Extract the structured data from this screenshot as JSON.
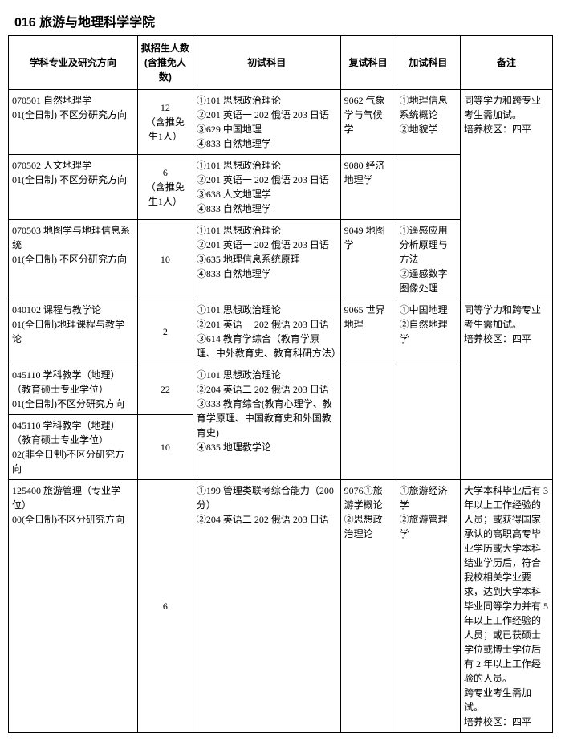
{
  "title": "016 旅游与地理科学学院",
  "headers": {
    "major": "学科专业及研究方向",
    "num": "拟招生人数(含推免人数)",
    "exam": "初试科目",
    "reexam": "复试科目",
    "addexam": "加试科目",
    "note": "备注"
  },
  "rows": {
    "r0": {
      "major": "070501 自然地理学\n01(全日制) 不区分研究方向",
      "num": "12\n（含推免生1人）",
      "exam": "①101 思想政治理论\n②201 英语一 202 俄语 203 日语\n③629 中国地理\n④833 自然地理学",
      "reexam": "9062 气象学与气候学",
      "addexam": "①地理信息系统概论\n②地貌学",
      "note": "同等学力和跨专业考生需加试。\n培养校区：四平"
    },
    "r1": {
      "major": "070502 人文地理学\n01(全日制) 不区分研究方向",
      "num": "6\n（含推免生1人）",
      "exam": "①101 思想政治理论\n②201 英语一 202 俄语 203 日语\n③638 人文地理学\n④833 自然地理学",
      "reexam": "9080 经济地理学"
    },
    "r2": {
      "major": "070503 地图学与地理信息系统\n01(全日制) 不区分研究方向",
      "num": "10",
      "exam": "①101 思想政治理论\n②201 英语一 202 俄语 203 日语\n③635 地理信息系统原理\n④833 自然地理学",
      "reexam": "9049 地图学",
      "addexam": "①遥感应用分析原理与方法\n②遥感数字图像处理"
    },
    "r3": {
      "major": "040102 课程与教学论\n01(全日制)地理课程与教学论",
      "num": "2",
      "exam": "①101 思想政治理论\n②201 英语一 202 俄语 203 日语\n③614 教育学综合（教育学原理、中外教育史、教育科研方法）",
      "reexam": "9065 世界地理",
      "addexam": "①中国地理\n②自然地理学",
      "note": "同等学力和跨专业考生需加试。\n培养校区：四平"
    },
    "r4": {
      "major": "045110 学科教学（地理）\n（教育硕士专业学位）\n01(全日制)不区分研究方向",
      "num": "22",
      "exam_shared": "①101 思想政治理论\n②204 英语二 202 俄语 203 日语\n③333 教育综合(教育心理学、教育学原理、中国教育史和外国教育史)\n④835 地理教学论"
    },
    "r5": {
      "major": "045110 学科教学（地理）\n（教育硕士专业学位）\n02(非全日制)不区分研究方向",
      "num": "10"
    },
    "r6": {
      "major": "125400 旅游管理（专业学位）\n00(全日制)不区分研究方向",
      "num": "6",
      "exam": "①199 管理类联考综合能力（200分）\n②204 英语二 202 俄语 203 日语",
      "reexam": "9076①旅游学概论\n②思想政治理论",
      "addexam": "①旅游经济学\n②旅游管理学",
      "note": "大学本科毕业后有 3 年以上工作经验的人员；或获得国家承认的高职高专毕业学历或大学本科结业学历后，符合我校相关学业要求，达到大学本科毕业同等学力并有 5 年以上工作经验的人员；或已获硕士学位或博士学位后有 2 年以上工作经验的人员。\n跨专业考生需加试。\n培养校区：四平"
    }
  }
}
